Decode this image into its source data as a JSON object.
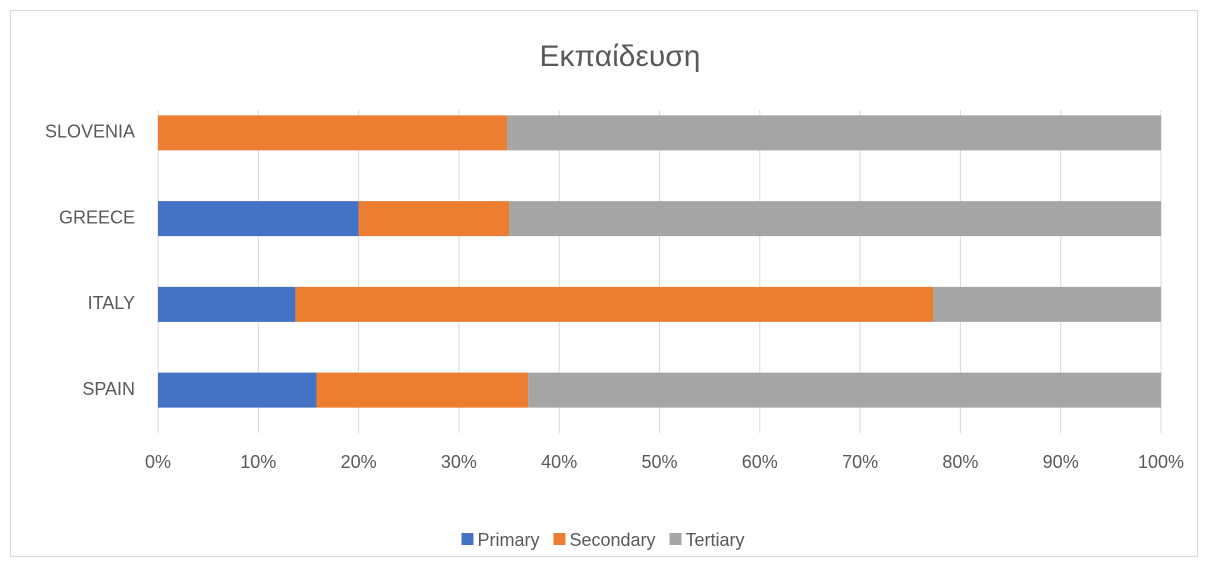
{
  "chart_data": {
    "type": "stacked-bar-horizontal",
    "title": "Εκπαίδευση",
    "categories": [
      "SPAIN",
      "ITALY",
      "GREECE",
      "SLOVENIA"
    ],
    "series": [
      {
        "name": "Primary",
        "color": "#4472c4",
        "values": [
          15.8,
          13.7,
          20.0,
          0
        ]
      },
      {
        "name": "Secondary",
        "color": "#ed7d31",
        "values": [
          21.1,
          63.6,
          15.0,
          34.8
        ]
      },
      {
        "name": "Tertiary",
        "color": "#a5a5a5",
        "values": [
          63.1,
          22.7,
          65.0,
          65.2
        ]
      }
    ],
    "xlim": [
      0,
      100
    ],
    "xticks": [
      {
        "value": 0,
        "label": "0%"
      },
      {
        "value": 10,
        "label": "10%"
      },
      {
        "value": 20,
        "label": "20%"
      },
      {
        "value": 30,
        "label": "30%"
      },
      {
        "value": 40,
        "label": "40%"
      },
      {
        "value": 50,
        "label": "50%"
      },
      {
        "value": 60,
        "label": "60%"
      },
      {
        "value": 70,
        "label": "70%"
      },
      {
        "value": 80,
        "label": "80%"
      },
      {
        "value": 90,
        "label": "90%"
      },
      {
        "value": 100,
        "label": "100%"
      }
    ],
    "grid": true,
    "legend": "bottom"
  }
}
